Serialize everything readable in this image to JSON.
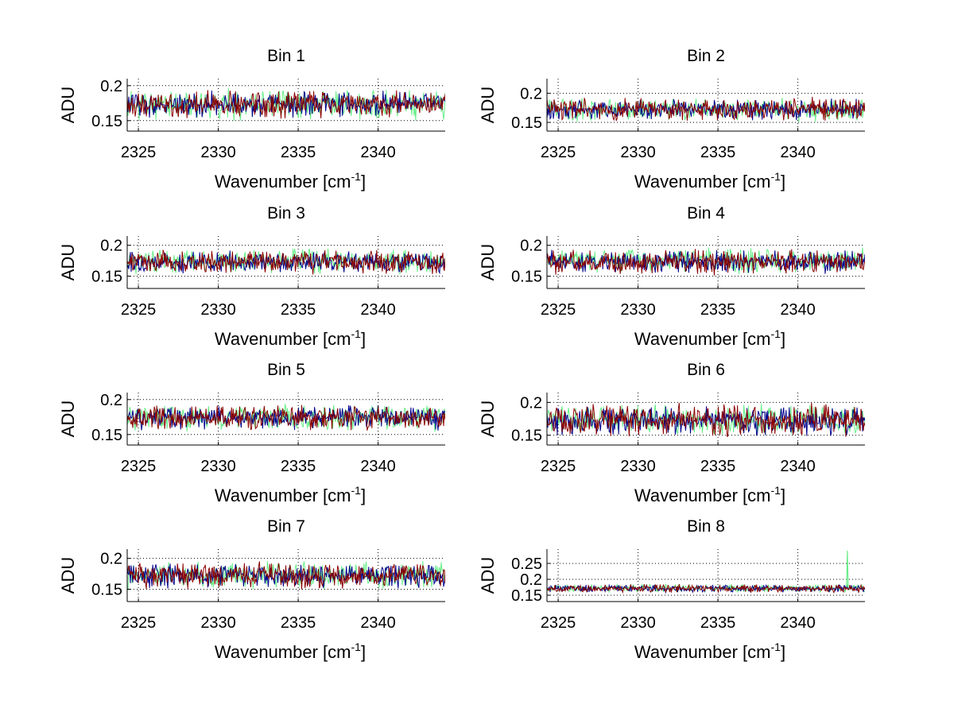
{
  "chart_data": [
    {
      "type": "line",
      "title": "Bin 1",
      "xlabel_main": "Wavenumber [cm",
      "xlabel_sup": "-1",
      "xlabel_end": "]",
      "ylabel": "ADU",
      "xlim": [
        2324.3,
        2344.2
      ],
      "ylim": [
        0.135,
        0.21
      ],
      "xticks": [
        2325,
        2330,
        2335,
        2340
      ],
      "yticks": [
        0.15,
        0.2
      ],
      "ytick_labels": [
        "0.15",
        "0.2"
      ],
      "xtick_labels": [
        "2325",
        "2330",
        "2335",
        "2340"
      ],
      "grid": true,
      "series": [
        {
          "name": "green",
          "color": "#66ee88",
          "mean": 0.173,
          "amp": 0.015,
          "seed": 11
        },
        {
          "name": "blue",
          "color": "#00008b",
          "mean": 0.173,
          "amp": 0.013,
          "seed": 12
        },
        {
          "name": "red",
          "color": "#8b0000",
          "mean": 0.173,
          "amp": 0.014,
          "seed": 13
        }
      ]
    },
    {
      "type": "line",
      "title": "Bin 2",
      "xlabel_main": "Wavenumber [cm",
      "xlabel_sup": "-1",
      "xlabel_end": "]",
      "ylabel": "ADU",
      "xlim": [
        2324.3,
        2344.2
      ],
      "ylim": [
        0.135,
        0.225
      ],
      "xticks": [
        2325,
        2330,
        2335,
        2340
      ],
      "yticks": [
        0.15,
        0.2
      ],
      "ytick_labels": [
        "0.15",
        "0.2"
      ],
      "xtick_labels": [
        "2325",
        "2330",
        "2335",
        "2340"
      ],
      "grid": true,
      "series": [
        {
          "name": "green",
          "color": "#66ee88",
          "mean": 0.172,
          "amp": 0.014,
          "seed": 21
        },
        {
          "name": "blue",
          "color": "#00008b",
          "mean": 0.172,
          "amp": 0.012,
          "seed": 22
        },
        {
          "name": "red",
          "color": "#8b0000",
          "mean": 0.173,
          "amp": 0.014,
          "seed": 23
        }
      ]
    },
    {
      "type": "line",
      "title": "Bin 3",
      "xlabel_main": "Wavenumber [cm",
      "xlabel_sup": "-1",
      "xlabel_end": "]",
      "ylabel": "ADU",
      "xlim": [
        2324.3,
        2344.2
      ],
      "ylim": [
        0.13,
        0.215
      ],
      "xticks": [
        2325,
        2330,
        2335,
        2340
      ],
      "yticks": [
        0.15,
        0.2
      ],
      "ytick_labels": [
        "0.15",
        "0.2"
      ],
      "xtick_labels": [
        "2325",
        "2330",
        "2335",
        "2340"
      ],
      "grid": true,
      "series": [
        {
          "name": "green",
          "color": "#66ee88",
          "mean": 0.174,
          "amp": 0.014,
          "seed": 31
        },
        {
          "name": "blue",
          "color": "#00008b",
          "mean": 0.173,
          "amp": 0.012,
          "seed": 32
        },
        {
          "name": "red",
          "color": "#8b0000",
          "mean": 0.173,
          "amp": 0.013,
          "seed": 33
        }
      ]
    },
    {
      "type": "line",
      "title": "Bin 4",
      "xlabel_main": "Wavenumber [cm",
      "xlabel_sup": "-1",
      "xlabel_end": "]",
      "ylabel": "ADU",
      "xlim": [
        2324.3,
        2344.2
      ],
      "ylim": [
        0.13,
        0.215
      ],
      "xticks": [
        2325,
        2330,
        2335,
        2340
      ],
      "yticks": [
        0.15,
        0.2
      ],
      "ytick_labels": [
        "0.15",
        "0.2"
      ],
      "xtick_labels": [
        "2325",
        "2330",
        "2335",
        "2340"
      ],
      "grid": true,
      "series": [
        {
          "name": "green",
          "color": "#66ee88",
          "mean": 0.175,
          "amp": 0.014,
          "seed": 41
        },
        {
          "name": "blue",
          "color": "#00008b",
          "mean": 0.173,
          "amp": 0.013,
          "seed": 42
        },
        {
          "name": "red",
          "color": "#8b0000",
          "mean": 0.173,
          "amp": 0.014,
          "seed": 43
        }
      ]
    },
    {
      "type": "line",
      "title": "Bin 5",
      "xlabel_main": "Wavenumber [cm",
      "xlabel_sup": "-1",
      "xlabel_end": "]",
      "ylabel": "ADU",
      "xlim": [
        2324.3,
        2344.2
      ],
      "ylim": [
        0.135,
        0.21
      ],
      "xticks": [
        2325,
        2330,
        2335,
        2340
      ],
      "yticks": [
        0.15,
        0.2
      ],
      "ytick_labels": [
        "0.15",
        "0.2"
      ],
      "xtick_labels": [
        "2325",
        "2330",
        "2335",
        "2340"
      ],
      "grid": true,
      "series": [
        {
          "name": "green",
          "color": "#66ee88",
          "mean": 0.174,
          "amp": 0.013,
          "seed": 51
        },
        {
          "name": "blue",
          "color": "#00008b",
          "mean": 0.174,
          "amp": 0.012,
          "seed": 52
        },
        {
          "name": "red",
          "color": "#8b0000",
          "mean": 0.174,
          "amp": 0.013,
          "seed": 53
        }
      ]
    },
    {
      "type": "line",
      "title": "Bin 6",
      "xlabel_main": "Wavenumber [cm",
      "xlabel_sup": "-1",
      "xlabel_end": "]",
      "ylabel": "ADU",
      "xlim": [
        2324.3,
        2344.2
      ],
      "ylim": [
        0.135,
        0.215
      ],
      "xticks": [
        2325,
        2330,
        2335,
        2340
      ],
      "yticks": [
        0.15,
        0.2
      ],
      "ytick_labels": [
        "0.15",
        "0.2"
      ],
      "xtick_labels": [
        "2325",
        "2330",
        "2335",
        "2340"
      ],
      "grid": true,
      "series": [
        {
          "name": "green",
          "color": "#66ee88",
          "mean": 0.173,
          "amp": 0.016,
          "seed": 61
        },
        {
          "name": "blue",
          "color": "#00008b",
          "mean": 0.172,
          "amp": 0.015,
          "seed": 62
        },
        {
          "name": "red",
          "color": "#8b0000",
          "mean": 0.173,
          "amp": 0.017,
          "seed": 63
        }
      ]
    },
    {
      "type": "line",
      "title": "Bin 7",
      "xlabel_main": "Wavenumber [cm",
      "xlabel_sup": "-1",
      "xlabel_end": "]",
      "ylabel": "ADU",
      "xlim": [
        2324.3,
        2344.2
      ],
      "ylim": [
        0.13,
        0.215
      ],
      "xticks": [
        2325,
        2330,
        2335,
        2340
      ],
      "yticks": [
        0.15,
        0.2
      ],
      "ytick_labels": [
        "0.15",
        "0.2"
      ],
      "xtick_labels": [
        "2325",
        "2330",
        "2335",
        "2340"
      ],
      "grid": true,
      "series": [
        {
          "name": "green",
          "color": "#66ee88",
          "mean": 0.173,
          "amp": 0.015,
          "seed": 71
        },
        {
          "name": "blue",
          "color": "#00008b",
          "mean": 0.172,
          "amp": 0.014,
          "seed": 72
        },
        {
          "name": "red",
          "color": "#8b0000",
          "mean": 0.172,
          "amp": 0.015,
          "seed": 73
        }
      ]
    },
    {
      "type": "line",
      "title": "Bin 8",
      "xlabel_main": "Wavenumber [cm",
      "xlabel_sup": "-1",
      "xlabel_end": "]",
      "ylabel": "ADU",
      "xlim": [
        2324.3,
        2344.2
      ],
      "ylim": [
        0.13,
        0.295
      ],
      "xticks": [
        2325,
        2330,
        2335,
        2340
      ],
      "yticks": [
        0.15,
        0.2,
        0.25
      ],
      "ytick_labels": [
        "0.15",
        "0.2",
        "0.25"
      ],
      "xtick_labels": [
        "2325",
        "2330",
        "2335",
        "2340"
      ],
      "grid": true,
      "spike": {
        "x": 2343.1,
        "y": 0.29
      },
      "series": [
        {
          "name": "green",
          "color": "#66ee88",
          "mean": 0.172,
          "amp": 0.009,
          "seed": 81
        },
        {
          "name": "blue",
          "color": "#00008b",
          "mean": 0.171,
          "amp": 0.008,
          "seed": 82
        },
        {
          "name": "red",
          "color": "#8b0000",
          "mean": 0.171,
          "amp": 0.009,
          "seed": 83
        }
      ]
    }
  ]
}
